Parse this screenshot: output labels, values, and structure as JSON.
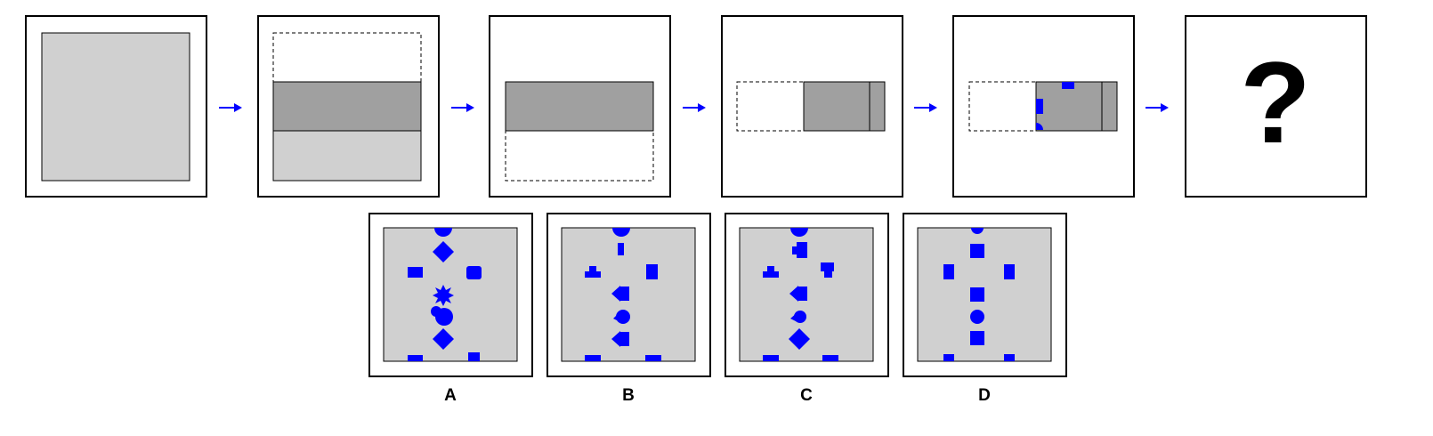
{
  "colors": {
    "paper_gray": "#d0d0d0",
    "fold_gray": "#a0a0a0",
    "blue": "#0000ff",
    "frame": "#000000"
  },
  "sequence": {
    "steps": [
      {
        "name": "unfolded-square"
      },
      {
        "name": "fold-top-down"
      },
      {
        "name": "folded-strip"
      },
      {
        "name": "fold-left-right"
      },
      {
        "name": "punched-holes"
      },
      {
        "name": "unknown-result"
      }
    ],
    "arrow_icon": "arrow-right-icon",
    "question_mark": "?"
  },
  "options": [
    {
      "label": "A"
    },
    {
      "label": "B"
    },
    {
      "label": "C"
    },
    {
      "label": "D"
    }
  ]
}
